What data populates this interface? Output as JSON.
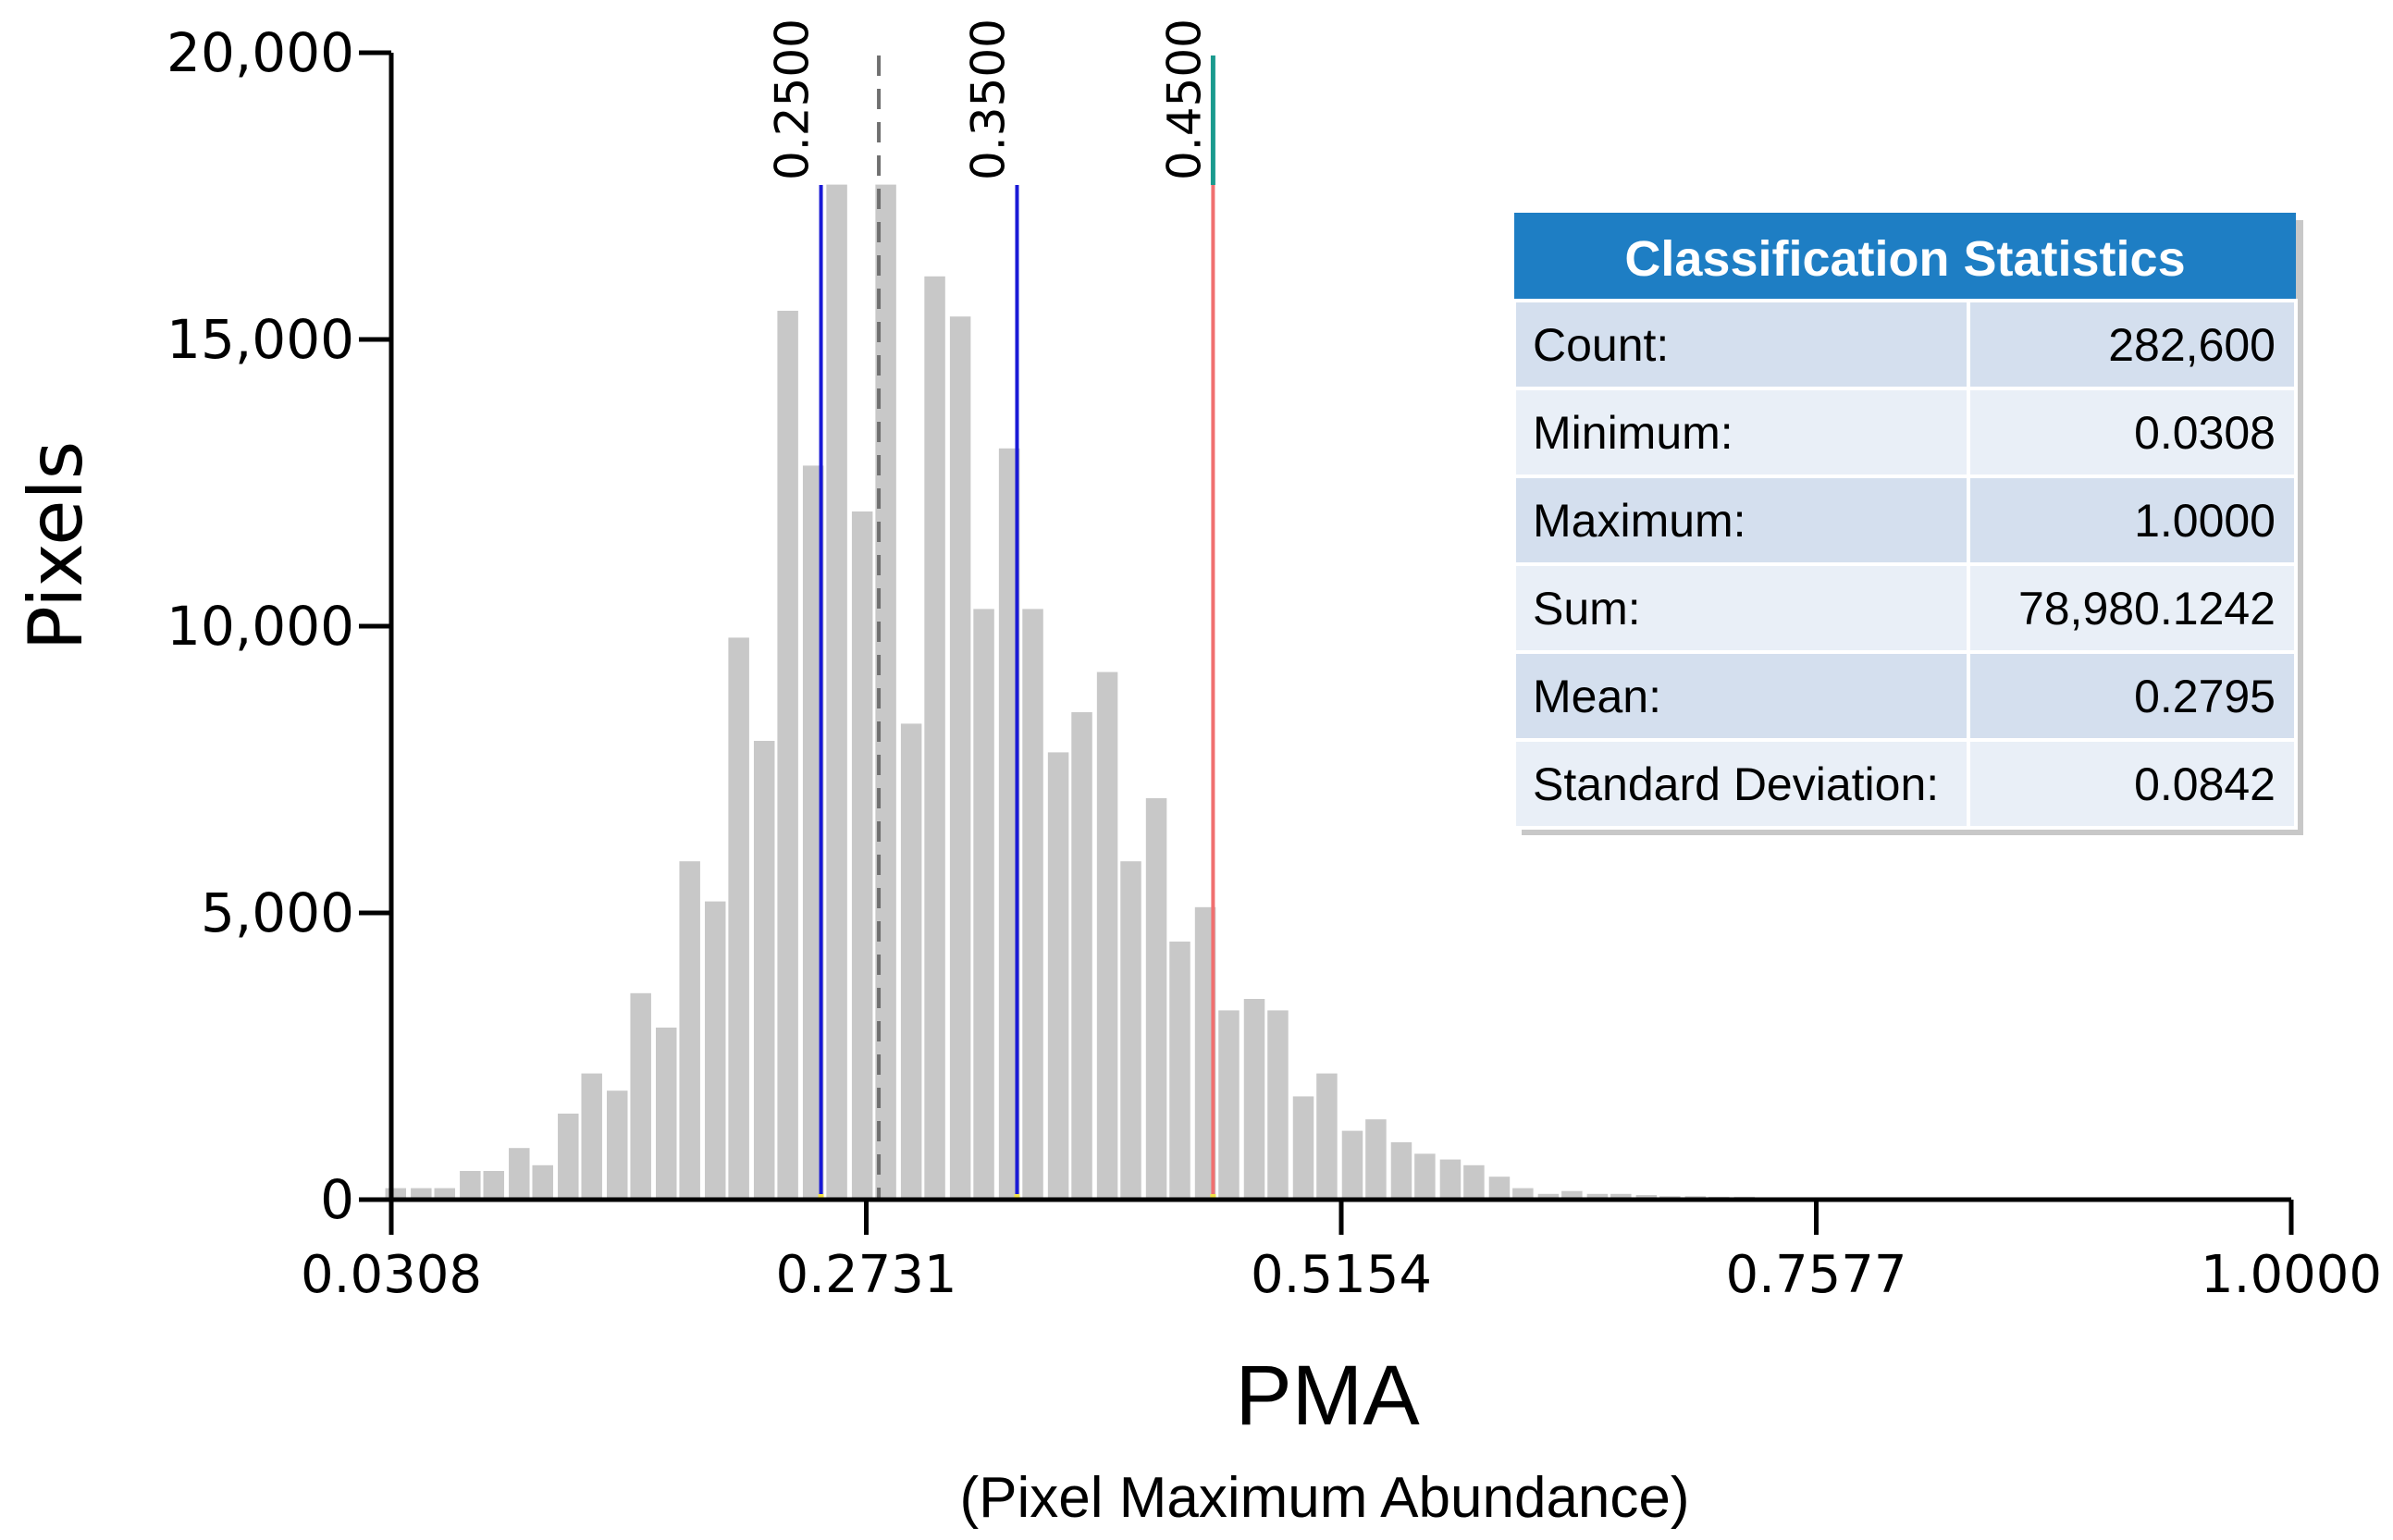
{
  "chart_data": {
    "type": "bar",
    "title": "",
    "xlabel": "PMA",
    "xlabel_sub": "(Pixel Maximum Abundance)",
    "ylabel": "Pixels",
    "xlim": [
      0.0308,
      1.0
    ],
    "ylim": [
      0,
      20000
    ],
    "x_ticks": [
      "0.0308",
      "0.2731",
      "0.5154",
      "0.7577",
      "1.0000"
    ],
    "y_ticks": [
      "0",
      "5,000",
      "10,000",
      "15,000",
      "20,000"
    ],
    "bin_width": 0.0125,
    "x": [
      0.034,
      0.047,
      0.059,
      0.072,
      0.084,
      0.097,
      0.109,
      0.122,
      0.134,
      0.147,
      0.159,
      0.172,
      0.184,
      0.197,
      0.209,
      0.222,
      0.234,
      0.247,
      0.259,
      0.272,
      0.284,
      0.297,
      0.309,
      0.322,
      0.334,
      0.347,
      0.359,
      0.372,
      0.384,
      0.397,
      0.409,
      0.422,
      0.434,
      0.447,
      0.459,
      0.472,
      0.484,
      0.497,
      0.509,
      0.522,
      0.534,
      0.547,
      0.559,
      0.572,
      0.584,
      0.597,
      0.609,
      0.622,
      0.634,
      0.647,
      0.659,
      0.672,
      0.684,
      0.697,
      0.709,
      0.722,
      0.734
    ],
    "values": [
      200,
      200,
      200,
      500,
      500,
      900,
      600,
      1500,
      2200,
      1900,
      3600,
      3000,
      5900,
      5200,
      9800,
      8000,
      15500,
      12800,
      17700,
      12000,
      17700,
      8300,
      16100,
      15400,
      10300,
      13100,
      10300,
      7800,
      8500,
      9200,
      5900,
      7000,
      4500,
      5100,
      3300,
      3500,
      3300,
      1800,
      2200,
      1200,
      1400,
      1000,
      800,
      700,
      600,
      400,
      200,
      100,
      150,
      100,
      100,
      80,
      60,
      60,
      50,
      50,
      40
    ],
    "mean": 0.2795,
    "thresholds": [
      {
        "label": "0.2500",
        "value": 0.25,
        "color": "#1a1ad6"
      },
      {
        "label": "0.3500",
        "value": 0.35,
        "color": "#1a1ad6"
      },
      {
        "label": "0.4500",
        "value": 0.45,
        "color": "#f07070"
      }
    ],
    "bar_color": "#c8c8c8"
  },
  "stats_table": {
    "title": "Classification Statistics",
    "rows": [
      {
        "label": "Count:",
        "value": "282,600"
      },
      {
        "label": "Minimum:",
        "value": "0.0308"
      },
      {
        "label": "Maximum:",
        "value": "1.0000"
      },
      {
        "label": "Sum:",
        "value": "78,980.1242"
      },
      {
        "label": "Mean:",
        "value": "0.2795"
      },
      {
        "label": "Standard Deviation:",
        "value": "0.0842"
      }
    ],
    "header_color": "#1e7ec4",
    "row_dark": "#d4dfee",
    "row_light": "#e9eff7"
  }
}
